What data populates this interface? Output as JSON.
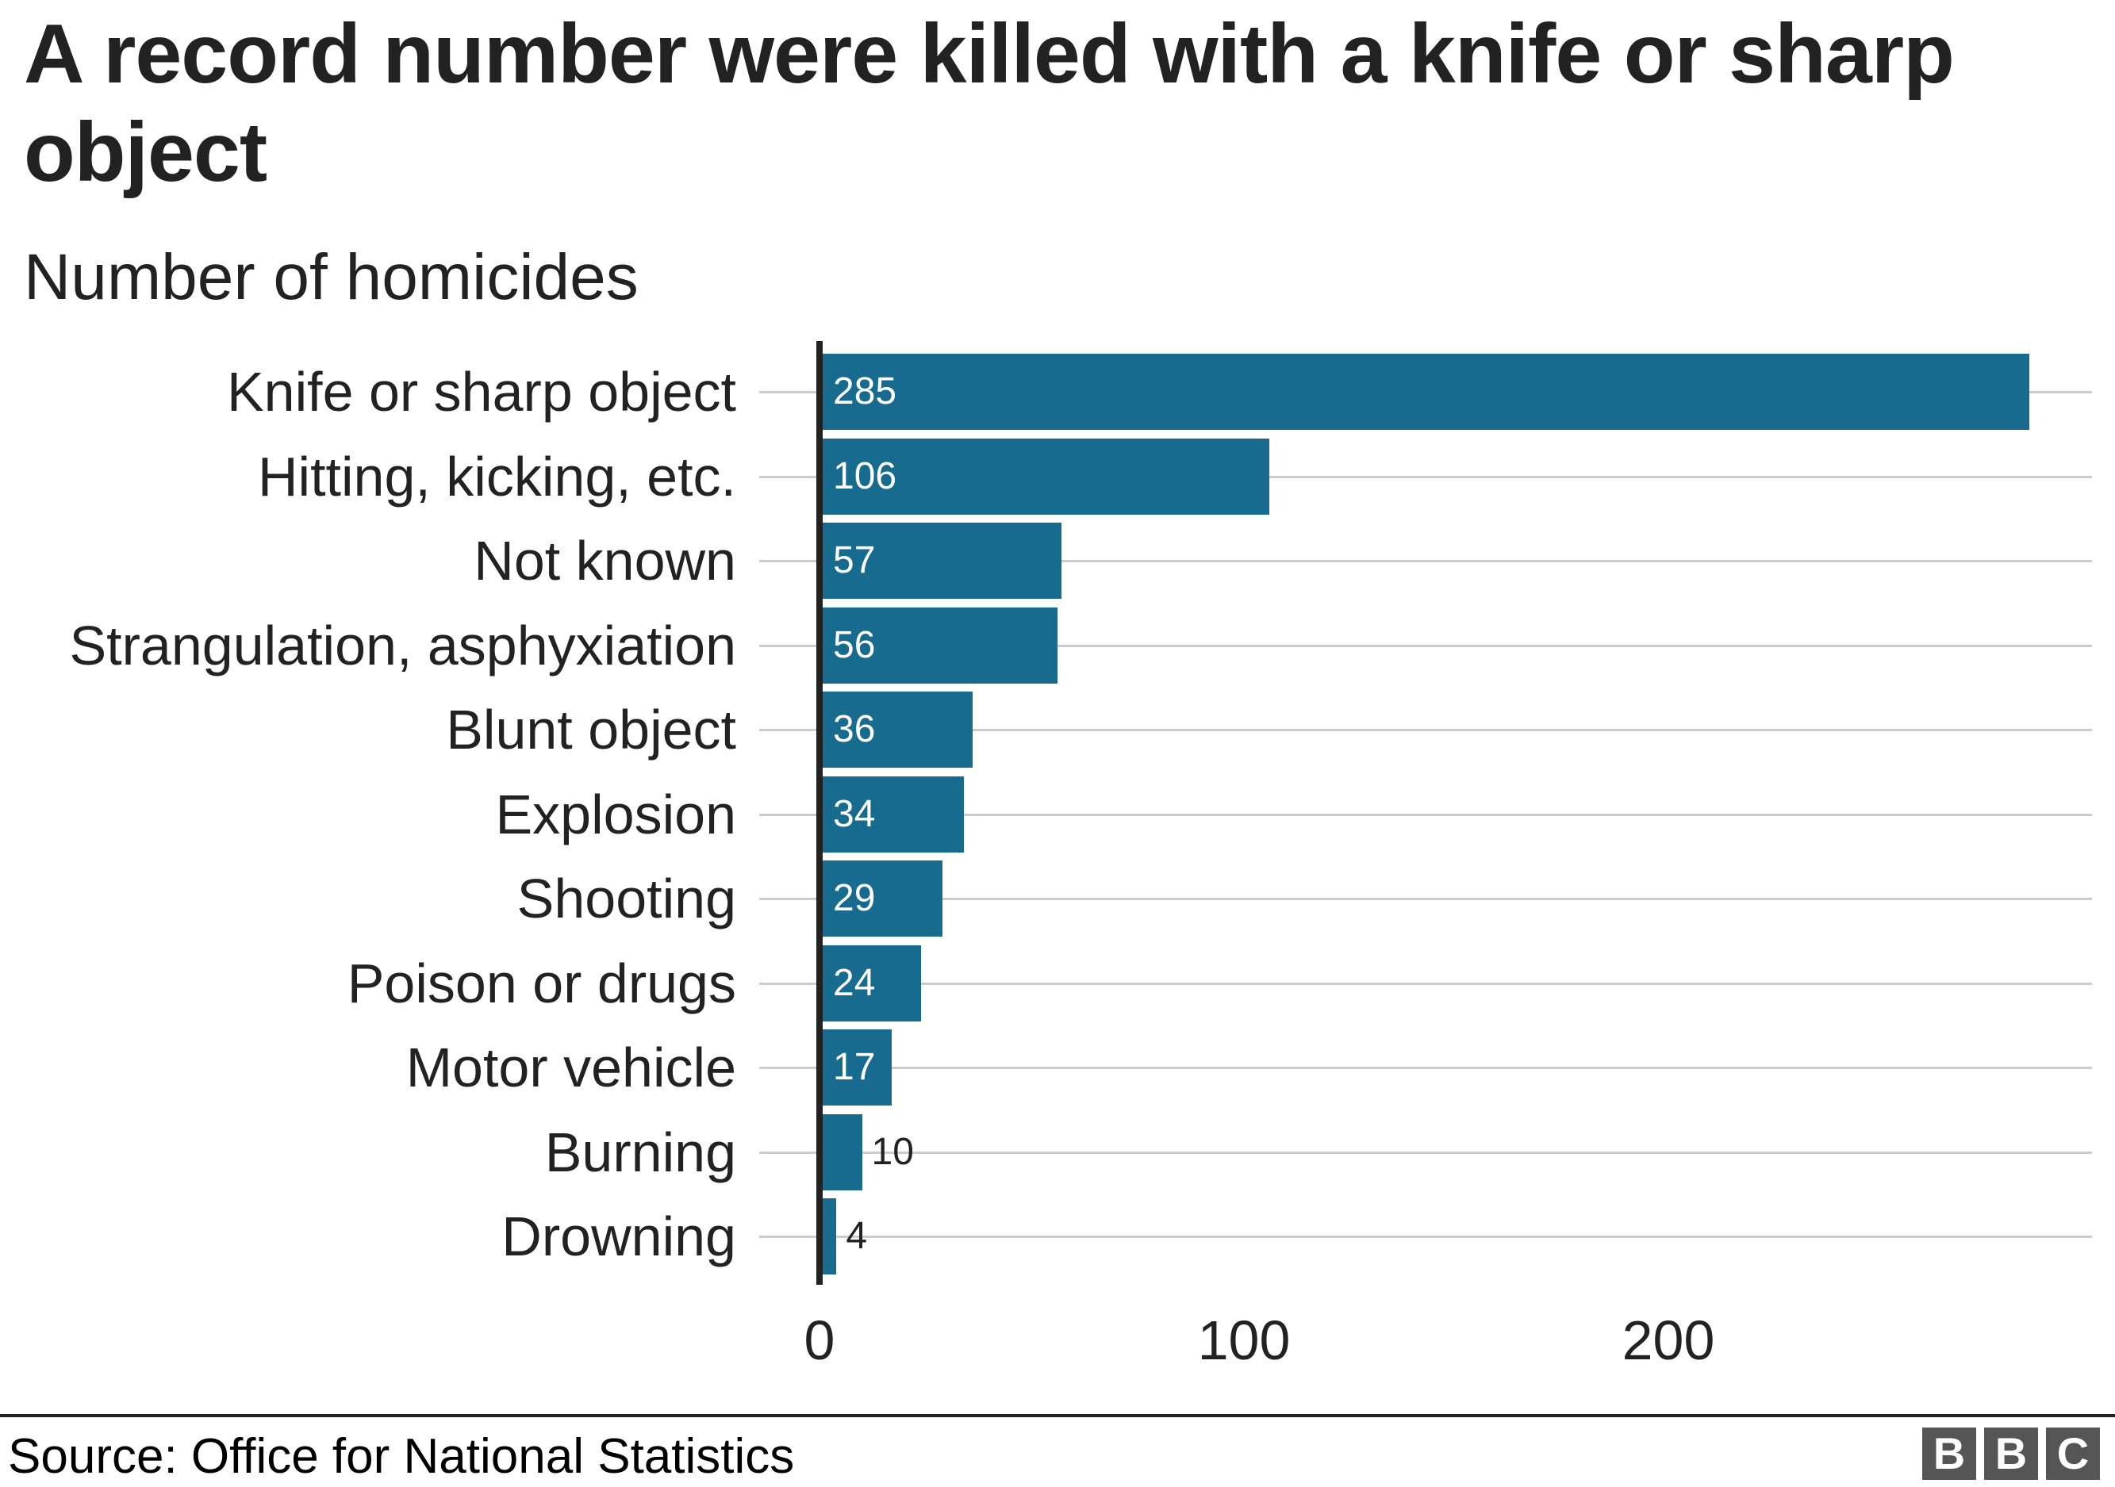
{
  "header": {
    "title": "A record number were killed with a knife or sharp object",
    "subtitle": "Number of homicides"
  },
  "footer": {
    "source": "Source: Office for National Statistics",
    "logo": [
      "B",
      "B",
      "C"
    ]
  },
  "colors": {
    "bar": "#176b8f",
    "axis": "#222222",
    "grid": "#cccccc",
    "logo_bg": "#555555"
  },
  "chart_data": {
    "type": "bar",
    "orientation": "horizontal",
    "title": "A record number were killed with a knife or sharp object",
    "subtitle": "Number of homicides",
    "xlabel": "",
    "ylabel": "",
    "categories": [
      "Knife or sharp object",
      "Hitting, kicking, etc.",
      "Not known",
      "Strangulation, asphyxiation",
      "Blunt object",
      "Explosion",
      "Shooting",
      "Poison or drugs",
      "Motor vehicle",
      "Burning",
      "Drowning"
    ],
    "values": [
      285,
      106,
      57,
      56,
      36,
      34,
      29,
      24,
      17,
      10,
      4
    ],
    "xlim": [
      0,
      300
    ],
    "xticks": [
      0,
      100,
      200
    ],
    "grid": true,
    "legend": null,
    "source": "Source: Office for National Statistics"
  }
}
